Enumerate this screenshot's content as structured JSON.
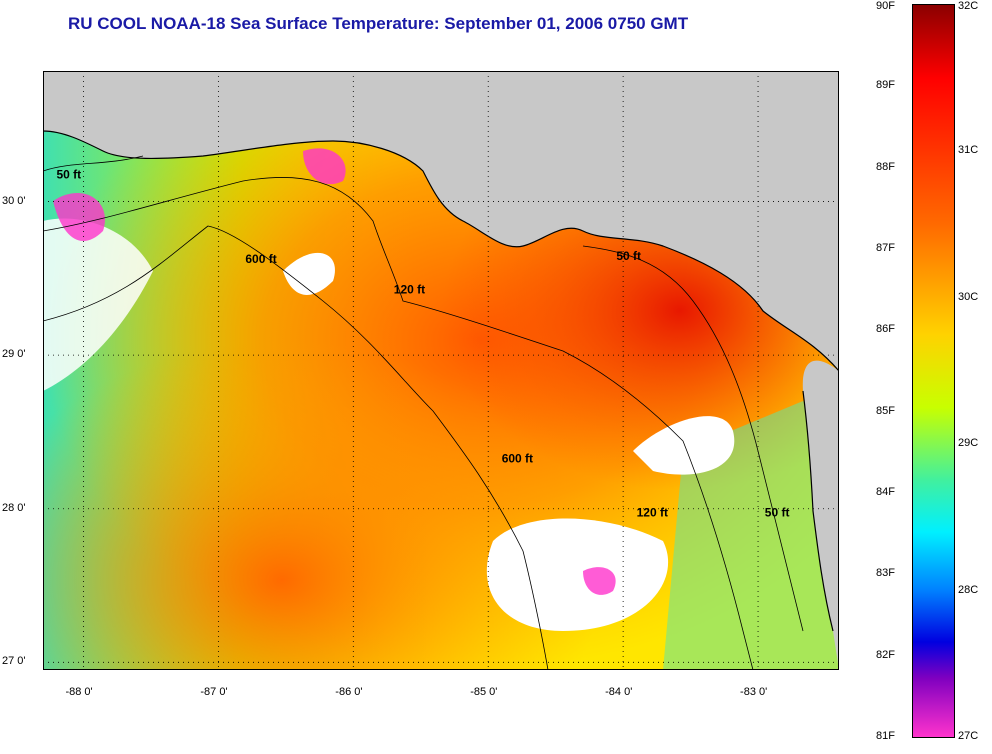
{
  "title": "RU COOL  NOAA-18  Sea Surface Temperature:  September 01, 2006 0750 GMT",
  "map": {
    "lon_range": [
      -88.3,
      -82.4
    ],
    "lat_range": [
      26.95,
      30.85
    ],
    "lon_ticks": [
      {
        "value": -88.0,
        "label": "-88 0'"
      },
      {
        "value": -87.0,
        "label": "-87 0'"
      },
      {
        "value": -86.0,
        "label": "-86 0'"
      },
      {
        "value": -85.0,
        "label": "-85 0'"
      },
      {
        "value": -84.0,
        "label": "-84 0'"
      },
      {
        "value": -83.0,
        "label": "-83 0'"
      }
    ],
    "lat_ticks": [
      {
        "value": 30.0,
        "label": "30 0'"
      },
      {
        "value": 29.0,
        "label": "29 0'"
      },
      {
        "value": 28.0,
        "label": "28 0'"
      },
      {
        "value": 27.0,
        "label": "27 0'"
      }
    ],
    "contour_labels": [
      {
        "label": "50 ft",
        "lon": -88.2,
        "lat": 30.15
      },
      {
        "label": "600 ft",
        "lon": -86.8,
        "lat": 29.6
      },
      {
        "label": "120 ft",
        "lon": -85.7,
        "lat": 29.4
      },
      {
        "label": "50 ft",
        "lon": -84.05,
        "lat": 29.62
      },
      {
        "label": "600 ft",
        "lon": -84.9,
        "lat": 28.3
      },
      {
        "label": "120 ft",
        "lon": -83.9,
        "lat": 27.95
      },
      {
        "label": "50 ft",
        "lon": -82.95,
        "lat": 27.95
      }
    ],
    "colors": {
      "land": "#c8c8c8",
      "cloud": "#ffffff",
      "coast": "#000000"
    }
  },
  "colorbar": {
    "f_labels": [
      "90F",
      "89F",
      "88F",
      "87F",
      "86F",
      "85F",
      "84F",
      "83F",
      "82F",
      "81F"
    ],
    "c_labels": [
      "32C",
      "31C",
      "30C",
      "29C",
      "28C",
      "27C"
    ],
    "f_range": [
      81,
      90
    ],
    "c_range": [
      27,
      32
    ]
  }
}
